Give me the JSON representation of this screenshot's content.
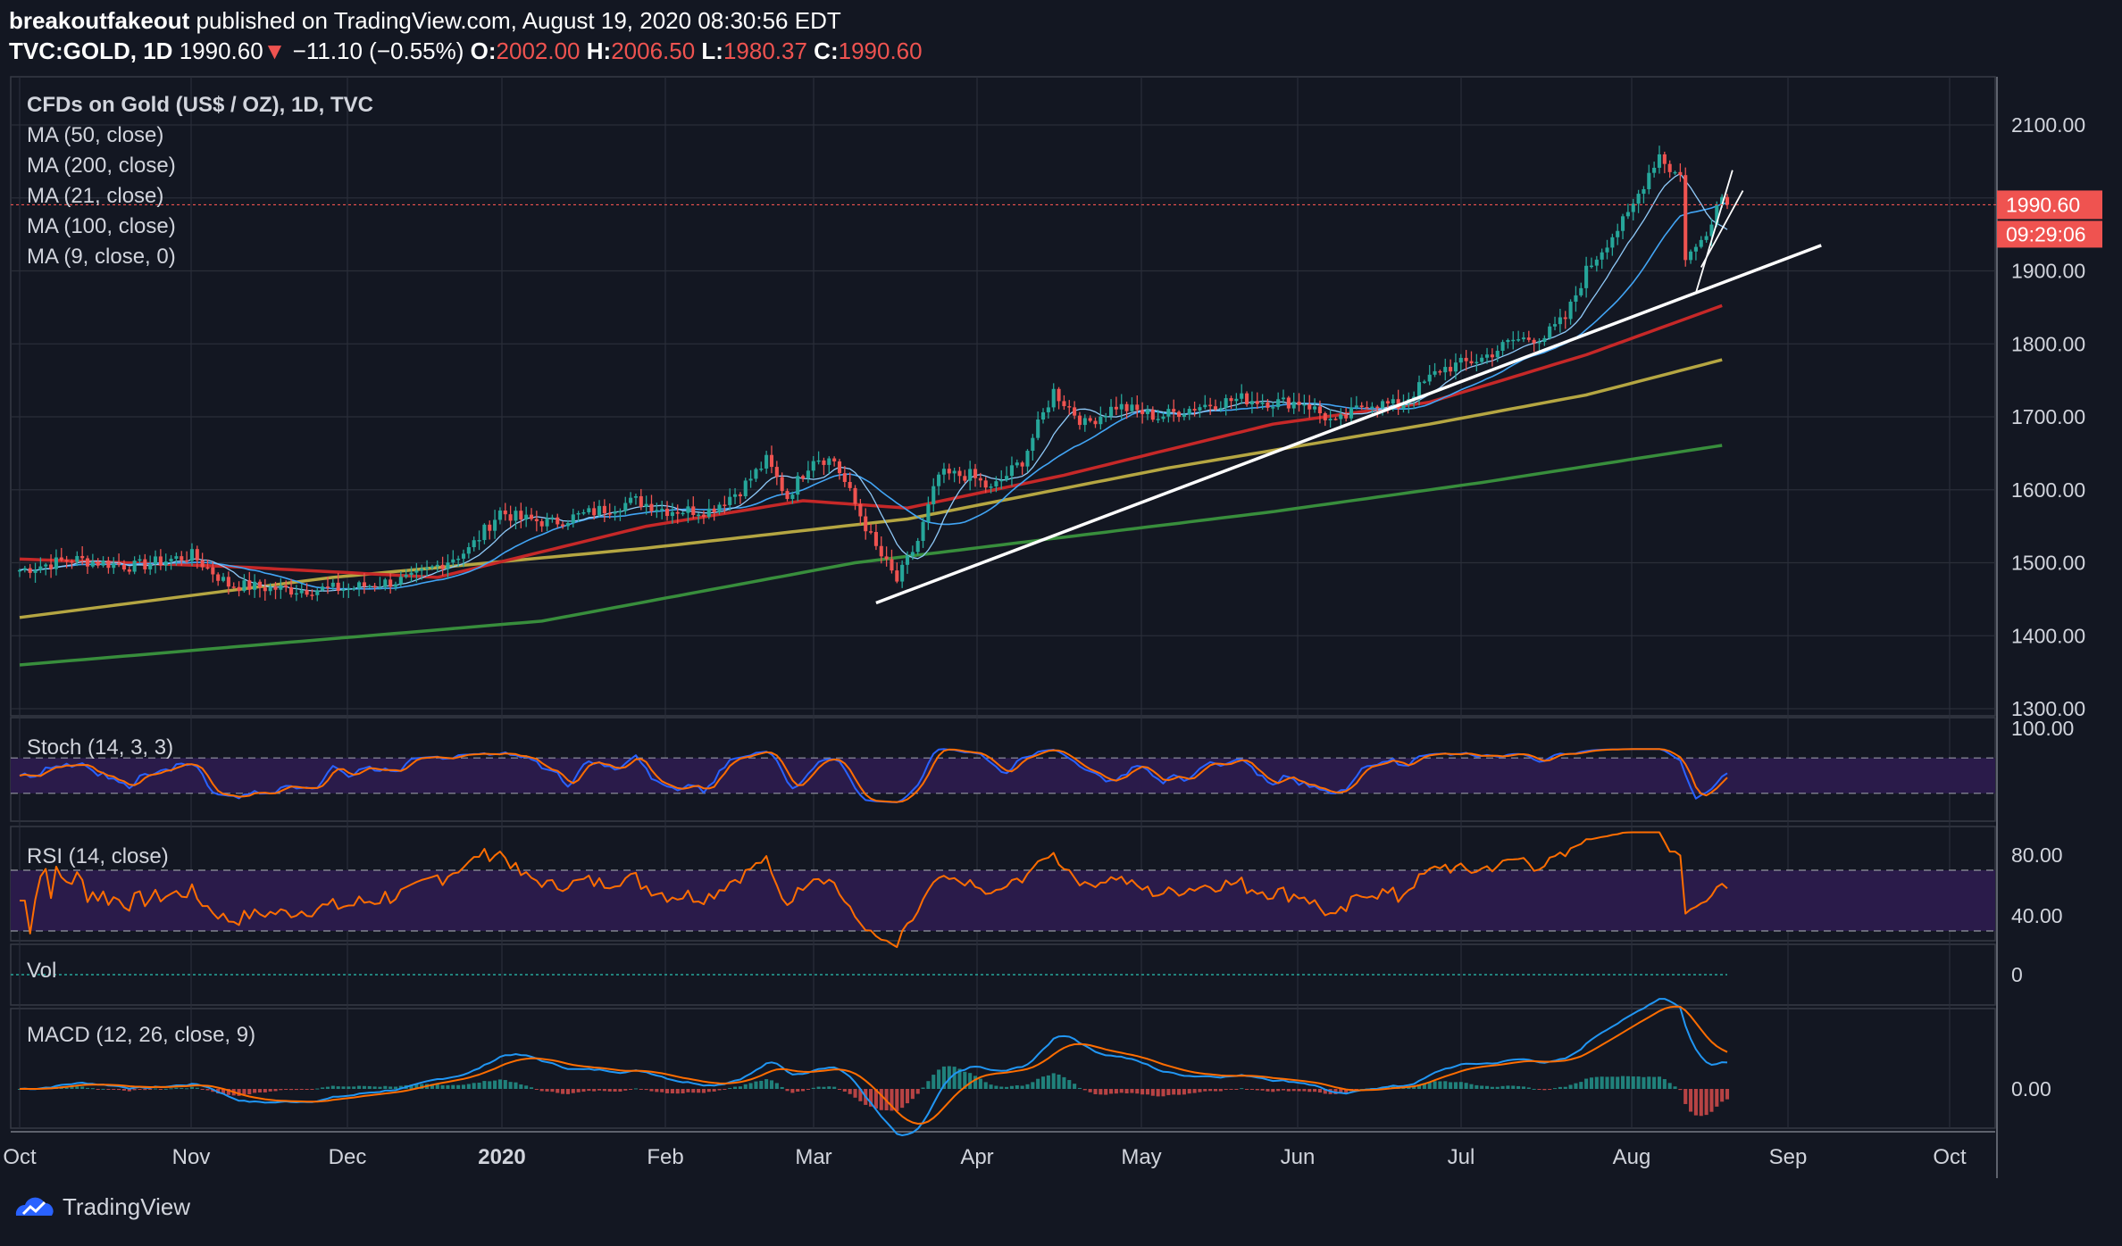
{
  "header": {
    "author": "breakoutfakeout",
    "published": " published on TradingView.com, August 19, 2020 08:30:56 EDT",
    "symbol": "TVC:GOLD, 1D",
    "last": "1990.60",
    "change": "−11.10 (−0.55%)",
    "o_label": "O:",
    "o_value": "2002.00",
    "h_label": "H:",
    "h_value": "2006.50",
    "l_label": "L:",
    "l_value": "1980.37",
    "c_label": "C:",
    "c_value": "1990.60",
    "down_arrow": "▼"
  },
  "main": {
    "title": "CFDs on Gold (US$ / OZ), 1D, TVC",
    "indicators": [
      "MA (50, close)",
      "MA (200, close)",
      "MA (21, close)",
      "MA (100, close)",
      "MA (9, close, 0)"
    ],
    "price_badge": "1990.60",
    "countdown_badge": "09:29:06"
  },
  "stoch": {
    "label": "Stoch (14, 3, 3)",
    "axis": "100.00"
  },
  "rsi": {
    "label": "RSI (14, close)",
    "axis": [
      "80.00",
      "40.00"
    ]
  },
  "vol": {
    "label": "Vol",
    "axis": "0"
  },
  "macd": {
    "label": "MACD (12, 26, close, 9)",
    "axis": "0.00"
  },
  "footer": {
    "brand": "TradingView"
  },
  "colors": {
    "bg": "#131722",
    "up": "#26a69a",
    "down": "#ef5350",
    "ma50": "#c62828",
    "ma100": "#b5a642",
    "ma200": "#388e3c",
    "ma21": "#42a5f5",
    "stoch_k": "#2962ff",
    "stoch_d": "#ff6d00",
    "rsi": "#ff6d00",
    "band": "#2a1b4a"
  },
  "chart_data": {
    "type": "candlestick",
    "symbol": "TVC:GOLD",
    "interval": "1D",
    "x_labels": [
      "Oct",
      "Nov",
      "Dec",
      "2020",
      "Feb",
      "Mar",
      "Apr",
      "May",
      "Jun",
      "Jul",
      "Aug",
      "Sep",
      "Oct"
    ],
    "y_ticks": [
      2100,
      2000,
      1900,
      1800,
      1700,
      1600,
      1500,
      1400,
      1300
    ],
    "ylim": [
      1290,
      2120
    ],
    "price_path": [
      {
        "d": 0,
        "c": 1490
      },
      {
        "d": 10,
        "c": 1505
      },
      {
        "d": 22,
        "c": 1495
      },
      {
        "d": 33,
        "c": 1510
      },
      {
        "d": 40,
        "c": 1470
      },
      {
        "d": 52,
        "c": 1463
      },
      {
        "d": 63,
        "c": 1465
      },
      {
        "d": 75,
        "c": 1478
      },
      {
        "d": 86,
        "c": 1518
      },
      {
        "d": 92,
        "c": 1570
      },
      {
        "d": 96,
        "c": 1560
      },
      {
        "d": 102,
        "c": 1555
      },
      {
        "d": 110,
        "c": 1570
      },
      {
        "d": 118,
        "c": 1585
      },
      {
        "d": 124,
        "c": 1572
      },
      {
        "d": 132,
        "c": 1572
      },
      {
        "d": 138,
        "c": 1600
      },
      {
        "d": 143,
        "c": 1640
      },
      {
        "d": 147,
        "c": 1590
      },
      {
        "d": 152,
        "c": 1645
      },
      {
        "d": 156,
        "c": 1640
      },
      {
        "d": 160,
        "c": 1580
      },
      {
        "d": 164,
        "c": 1520
      },
      {
        "d": 168,
        "c": 1475
      },
      {
        "d": 172,
        "c": 1530
      },
      {
        "d": 176,
        "c": 1620
      },
      {
        "d": 182,
        "c": 1620
      },
      {
        "d": 186,
        "c": 1600
      },
      {
        "d": 192,
        "c": 1640
      },
      {
        "d": 198,
        "c": 1735
      },
      {
        "d": 204,
        "c": 1690
      },
      {
        "d": 210,
        "c": 1715
      },
      {
        "d": 218,
        "c": 1700
      },
      {
        "d": 226,
        "c": 1715
      },
      {
        "d": 234,
        "c": 1725
      },
      {
        "d": 240,
        "c": 1720
      },
      {
        "d": 246,
        "c": 1720
      },
      {
        "d": 252,
        "c": 1690
      },
      {
        "d": 258,
        "c": 1720
      },
      {
        "d": 264,
        "c": 1715
      },
      {
        "d": 272,
        "c": 1765
      },
      {
        "d": 280,
        "c": 1780
      },
      {
        "d": 286,
        "c": 1805
      },
      {
        "d": 292,
        "c": 1810
      },
      {
        "d": 296,
        "c": 1835
      },
      {
        "d": 300,
        "c": 1900
      },
      {
        "d": 304,
        "c": 1940
      },
      {
        "d": 308,
        "c": 1975
      },
      {
        "d": 312,
        "c": 2035
      },
      {
        "d": 314,
        "c": 2060
      },
      {
        "d": 316,
        "c": 2040
      },
      {
        "d": 318,
        "c": 2030
      },
      {
        "d": 319,
        "c": 1920
      },
      {
        "d": 321,
        "c": 1930
      },
      {
        "d": 323,
        "c": 1955
      },
      {
        "d": 325,
        "c": 1990
      },
      {
        "d": 326,
        "c": 2002
      },
      {
        "d": 327,
        "c": 1990.6
      }
    ],
    "ma_approx": {
      "ma200": [
        {
          "d": 0,
          "v": 1360
        },
        {
          "d": 100,
          "v": 1420
        },
        {
          "d": 160,
          "v": 1500
        },
        {
          "d": 240,
          "v": 1570
        },
        {
          "d": 280,
          "v": 1610
        },
        {
          "d": 327,
          "v": 1662
        }
      ],
      "ma100": [
        {
          "d": 0,
          "v": 1425
        },
        {
          "d": 60,
          "v": 1480
        },
        {
          "d": 120,
          "v": 1520
        },
        {
          "d": 170,
          "v": 1560
        },
        {
          "d": 220,
          "v": 1630
        },
        {
          "d": 270,
          "v": 1690
        },
        {
          "d": 300,
          "v": 1730
        },
        {
          "d": 327,
          "v": 1780
        }
      ],
      "ma50": [
        {
          "d": 0,
          "v": 1505
        },
        {
          "d": 40,
          "v": 1495
        },
        {
          "d": 80,
          "v": 1480
        },
        {
          "d": 120,
          "v": 1550
        },
        {
          "d": 150,
          "v": 1585
        },
        {
          "d": 170,
          "v": 1575
        },
        {
          "d": 200,
          "v": 1620
        },
        {
          "d": 240,
          "v": 1690
        },
        {
          "d": 270,
          "v": 1720
        },
        {
          "d": 300,
          "v": 1785
        },
        {
          "d": 327,
          "v": 1855
        }
      ]
    },
    "trendline": {
      "from": {
        "d": 164,
        "v": 1445
      },
      "to": {
        "d": 345,
        "v": 1935
      }
    },
    "stoch_band": [
      20,
      80
    ],
    "rsi_band": [
      30,
      70
    ],
    "rsi_ticks": [
      80,
      40
    ],
    "macd_zero": 0,
    "last_price": 1990.6
  }
}
